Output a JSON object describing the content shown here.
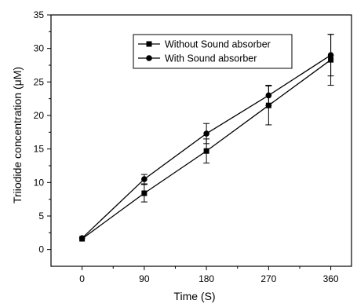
{
  "chart_data": {
    "type": "line",
    "xlabel": "Time (S)",
    "ylabel": "Triiodide concentration (μM)",
    "x": [
      0,
      90,
      180,
      270,
      360
    ],
    "xticks": [
      "0",
      "90",
      "180",
      "270",
      "360"
    ],
    "yticks": [
      "0",
      "5",
      "10",
      "15",
      "20",
      "25",
      "30",
      "35"
    ],
    "xlim": [
      -45,
      390
    ],
    "ylim": [
      -2.5,
      35
    ],
    "legend_position": "top-center",
    "series": [
      {
        "name": "Without Sound absorber",
        "marker": "square",
        "values": [
          1.6,
          8.4,
          14.7,
          21.5,
          28.3
        ],
        "errors": [
          0,
          1.3,
          1.8,
          2.9,
          3.8
        ]
      },
      {
        "name": "With Sound absorber",
        "marker": "circle",
        "values": [
          1.7,
          10.5,
          17.3,
          23.0,
          29.0
        ],
        "errors": [
          0,
          0.7,
          1.5,
          1.5,
          3.1
        ]
      }
    ],
    "colors": {
      "line": "#000000",
      "axis": "#000000"
    }
  }
}
